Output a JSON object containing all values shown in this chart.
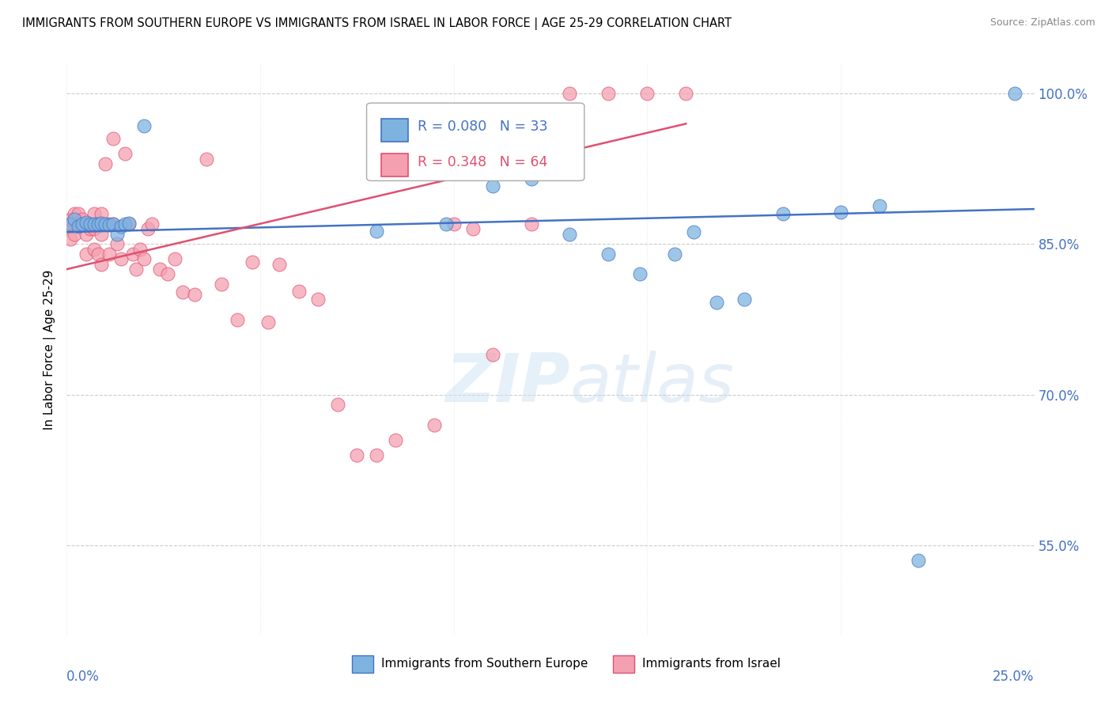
{
  "title": "IMMIGRANTS FROM SOUTHERN EUROPE VS IMMIGRANTS FROM ISRAEL IN LABOR FORCE | AGE 25-29 CORRELATION CHART",
  "source": "Source: ZipAtlas.com",
  "ylabel": "In Labor Force | Age 25-29",
  "legend_blue_R": "R = 0.080",
  "legend_blue_N": "N = 33",
  "legend_pink_R": "R = 0.348",
  "legend_pink_N": "N = 64",
  "legend_label_blue": "Immigrants from Southern Europe",
  "legend_label_pink": "Immigrants from Israel",
  "blue_color": "#7EB3E0",
  "pink_color": "#F4A0B0",
  "blue_line_color": "#4472C4",
  "pink_line_color": "#E05070",
  "watermark_zip": "ZIP",
  "watermark_atlas": "atlas",
  "x_min": 0.0,
  "x_max": 0.25,
  "y_min": 0.46,
  "y_max": 1.03,
  "blue_trend_x0": 0.0,
  "blue_trend_y0": 0.862,
  "blue_trend_x1": 0.25,
  "blue_trend_y1": 0.885,
  "pink_trend_x0": 0.0,
  "pink_trend_y0": 0.825,
  "pink_trend_x1": 0.16,
  "pink_trend_y1": 0.97,
  "blue_x": [
    0.001,
    0.002,
    0.003,
    0.004,
    0.005,
    0.006,
    0.007,
    0.008,
    0.009,
    0.01,
    0.011,
    0.012,
    0.013,
    0.014,
    0.015,
    0.016,
    0.02,
    0.08,
    0.098,
    0.11,
    0.12,
    0.13,
    0.14,
    0.148,
    0.157,
    0.162,
    0.168,
    0.175,
    0.185,
    0.2,
    0.21,
    0.22,
    0.245
  ],
  "blue_y": [
    0.87,
    0.875,
    0.868,
    0.87,
    0.872,
    0.87,
    0.87,
    0.87,
    0.871,
    0.87,
    0.869,
    0.87,
    0.86,
    0.868,
    0.87,
    0.871,
    0.968,
    0.863,
    0.87,
    0.908,
    0.915,
    0.86,
    0.84,
    0.82,
    0.84,
    0.862,
    0.792,
    0.795,
    0.88,
    0.882,
    0.888,
    0.535,
    1.0
  ],
  "pink_x": [
    0.001,
    0.001,
    0.001,
    0.002,
    0.002,
    0.002,
    0.003,
    0.003,
    0.004,
    0.004,
    0.005,
    0.005,
    0.005,
    0.006,
    0.006,
    0.007,
    0.007,
    0.007,
    0.008,
    0.008,
    0.009,
    0.009,
    0.009,
    0.01,
    0.011,
    0.011,
    0.012,
    0.012,
    0.013,
    0.014,
    0.015,
    0.016,
    0.017,
    0.018,
    0.019,
    0.02,
    0.021,
    0.022,
    0.024,
    0.026,
    0.028,
    0.03,
    0.033,
    0.036,
    0.04,
    0.044,
    0.048,
    0.052,
    0.055,
    0.06,
    0.065,
    0.07,
    0.075,
    0.08,
    0.085,
    0.095,
    0.1,
    0.105,
    0.11,
    0.12,
    0.13,
    0.14,
    0.15,
    0.16
  ],
  "pink_y": [
    0.87,
    0.855,
    0.875,
    0.87,
    0.86,
    0.88,
    0.87,
    0.88,
    0.87,
    0.875,
    0.87,
    0.86,
    0.84,
    0.87,
    0.865,
    0.88,
    0.865,
    0.845,
    0.87,
    0.84,
    0.88,
    0.86,
    0.83,
    0.93,
    0.87,
    0.84,
    0.955,
    0.87,
    0.85,
    0.835,
    0.94,
    0.87,
    0.84,
    0.825,
    0.845,
    0.835,
    0.865,
    0.87,
    0.825,
    0.82,
    0.835,
    0.802,
    0.8,
    0.935,
    0.81,
    0.775,
    0.832,
    0.772,
    0.83,
    0.803,
    0.795,
    0.69,
    0.64,
    0.64,
    0.655,
    0.67,
    0.87,
    0.865,
    0.74,
    0.87,
    1.0,
    1.0,
    1.0,
    1.0
  ]
}
